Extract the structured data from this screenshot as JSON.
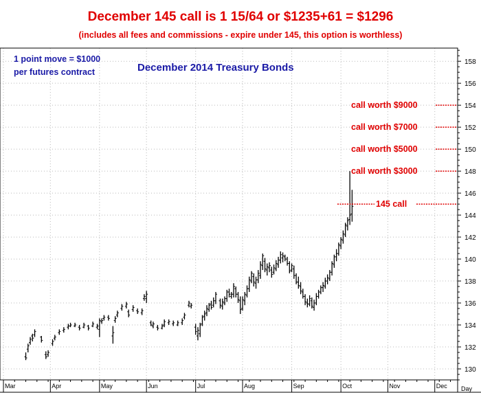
{
  "header": {
    "title": "December 145 call is 1 15/64 or $1235+61 = $1296",
    "subtitle": "(includes all fees and commissions - expire under 145, this option is worthless)"
  },
  "colors": {
    "red": "#e00000",
    "blue": "#1a1aa6",
    "bars": "#000000",
    "grid": "#b8b8b8"
  },
  "chart_data": {
    "type": "bar",
    "subtype": "ohlc-price-bars",
    "title": "December 2014 Treasury Bonds",
    "note": "1 point move = $1000 per futures contract",
    "xlabel": "Day",
    "ylim": [
      129,
      159.2
    ],
    "y_ticks": [
      130,
      132,
      134,
      136,
      138,
      140,
      142,
      144,
      146,
      148,
      150,
      152,
      154,
      156,
      158
    ],
    "y_tick_labels": [
      "130",
      "132",
      "134",
      "136",
      "138",
      "140",
      "142",
      "144",
      "146",
      "148",
      "150",
      "152",
      "154",
      "156",
      "158"
    ],
    "x_months": [
      "Mar",
      "Apr",
      "May",
      "Jun",
      "Jul",
      "Aug",
      "Sep",
      "Oct",
      "Nov",
      "Dec"
    ],
    "x_month_index": [
      0,
      21,
      43,
      64,
      86,
      107,
      129,
      151,
      172,
      193
    ],
    "grid": true,
    "annotations": [
      {
        "label": "call worth $9000",
        "y": 154
      },
      {
        "label": "call worth $7000",
        "y": 152
      },
      {
        "label": "call worth $5000",
        "y": 150
      },
      {
        "label": "call worth $3000",
        "y": 148
      },
      {
        "label": "145 call",
        "y": 145
      }
    ],
    "bars": [
      {
        "x": 10,
        "low": 130.8,
        "high": 131.5,
        "open": 131.1,
        "close": 131.0
      },
      {
        "x": 11,
        "low": 131.5,
        "high": 132.3,
        "open": 131.8,
        "close": 132.1
      },
      {
        "x": 12,
        "low": 132.2,
        "high": 132.9,
        "open": 132.4,
        "close": 132.7
      },
      {
        "x": 13,
        "low": 132.5,
        "high": 133.2,
        "open": 133.0,
        "close": 132.8
      },
      {
        "x": 14,
        "low": 132.9,
        "high": 133.6,
        "open": 133.1,
        "close": 133.4
      },
      {
        "x": 17,
        "low": 132.4,
        "high": 133.0,
        "open": 132.9,
        "close": 132.6
      },
      {
        "x": 19,
        "low": 130.9,
        "high": 131.6,
        "open": 131.3,
        "close": 131.1
      },
      {
        "x": 20,
        "low": 131.1,
        "high": 131.7,
        "open": 131.3,
        "close": 131.5
      },
      {
        "x": 22,
        "low": 132.1,
        "high": 132.7,
        "open": 132.3,
        "close": 132.5
      },
      {
        "x": 23,
        "low": 132.6,
        "high": 133.1,
        "open": 132.8,
        "close": 132.9
      },
      {
        "x": 25,
        "low": 133.1,
        "high": 133.6,
        "open": 133.3,
        "close": 133.4
      },
      {
        "x": 27,
        "low": 133.3,
        "high": 133.8,
        "open": 133.5,
        "close": 133.6
      },
      {
        "x": 29,
        "low": 133.6,
        "high": 134.1,
        "open": 133.8,
        "close": 133.9
      },
      {
        "x": 30,
        "low": 133.8,
        "high": 134.2,
        "open": 133.9,
        "close": 134.0
      },
      {
        "x": 32,
        "low": 133.8,
        "high": 134.2,
        "open": 133.9,
        "close": 134.0
      },
      {
        "x": 34,
        "low": 133.5,
        "high": 134.0,
        "open": 133.8,
        "close": 133.7
      },
      {
        "x": 36,
        "low": 133.7,
        "high": 134.2,
        "open": 133.8,
        "close": 134.0
      },
      {
        "x": 38,
        "low": 133.5,
        "high": 134.0,
        "open": 133.9,
        "close": 133.7
      },
      {
        "x": 40,
        "low": 133.8,
        "high": 134.3,
        "open": 133.9,
        "close": 134.1
      },
      {
        "x": 42,
        "low": 133.6,
        "high": 134.1,
        "open": 133.8,
        "close": 133.9
      },
      {
        "x": 43,
        "low": 132.9,
        "high": 134.6,
        "open": 133.6,
        "close": 134.4
      },
      {
        "x": 44,
        "low": 134.1,
        "high": 134.6,
        "open": 134.3,
        "close": 134.4
      },
      {
        "x": 45,
        "low": 134.4,
        "high": 134.9,
        "open": 134.6,
        "close": 134.7
      },
      {
        "x": 47,
        "low": 134.4,
        "high": 134.9,
        "open": 134.7,
        "close": 134.6
      },
      {
        "x": 49,
        "low": 132.3,
        "high": 133.9,
        "open": 133.0,
        "close": 133.3
      },
      {
        "x": 50,
        "low": 134.2,
        "high": 134.8,
        "open": 134.4,
        "close": 134.6
      },
      {
        "x": 51,
        "low": 134.7,
        "high": 135.3,
        "open": 134.9,
        "close": 135.1
      },
      {
        "x": 53,
        "low": 135.3,
        "high": 135.9,
        "open": 135.5,
        "close": 135.7
      },
      {
        "x": 55,
        "low": 135.5,
        "high": 136.1,
        "open": 135.7,
        "close": 135.9
      },
      {
        "x": 56,
        "low": 134.7,
        "high": 135.4,
        "open": 135.2,
        "close": 134.9
      },
      {
        "x": 58,
        "low": 135.2,
        "high": 135.8,
        "open": 135.4,
        "close": 135.6
      },
      {
        "x": 60,
        "low": 135.0,
        "high": 135.5,
        "open": 135.3,
        "close": 135.2
      },
      {
        "x": 62,
        "low": 134.9,
        "high": 135.5,
        "open": 135.1,
        "close": 135.3
      },
      {
        "x": 63,
        "low": 136.2,
        "high": 136.8,
        "open": 136.4,
        "close": 136.6
      },
      {
        "x": 64,
        "low": 136.0,
        "high": 137.1,
        "open": 136.4,
        "close": 136.8
      },
      {
        "x": 66,
        "low": 133.9,
        "high": 134.4,
        "open": 134.2,
        "close": 134.0
      },
      {
        "x": 67,
        "low": 133.7,
        "high": 134.3,
        "open": 133.9,
        "close": 134.1
      },
      {
        "x": 69,
        "low": 133.5,
        "high": 134.0,
        "open": 133.8,
        "close": 133.7
      },
      {
        "x": 71,
        "low": 133.6,
        "high": 134.1,
        "open": 133.7,
        "close": 133.9
      },
      {
        "x": 72,
        "low": 133.8,
        "high": 134.5,
        "open": 134.0,
        "close": 134.3
      },
      {
        "x": 74,
        "low": 134.0,
        "high": 134.5,
        "open": 134.2,
        "close": 134.3
      },
      {
        "x": 76,
        "low": 133.9,
        "high": 134.4,
        "open": 134.1,
        "close": 134.2
      },
      {
        "x": 78,
        "low": 133.9,
        "high": 134.4,
        "open": 134.0,
        "close": 134.2
      },
      {
        "x": 80,
        "low": 134.0,
        "high": 134.6,
        "open": 134.2,
        "close": 134.4
      },
      {
        "x": 81,
        "low": 134.5,
        "high": 135.1,
        "open": 134.7,
        "close": 134.9
      },
      {
        "x": 83,
        "low": 135.6,
        "high": 136.2,
        "open": 135.8,
        "close": 136.0
      },
      {
        "x": 84,
        "low": 135.5,
        "high": 136.0,
        "open": 135.7,
        "close": 135.8
      },
      {
        "x": 86,
        "low": 133.1,
        "high": 134.1,
        "open": 133.8,
        "close": 133.4
      },
      {
        "x": 87,
        "low": 132.6,
        "high": 133.8,
        "open": 133.0,
        "close": 133.5
      },
      {
        "x": 88,
        "low": 132.9,
        "high": 134.2,
        "open": 133.2,
        "close": 134.0
      },
      {
        "x": 89,
        "low": 133.9,
        "high": 134.9,
        "open": 134.1,
        "close": 134.7
      },
      {
        "x": 90,
        "low": 134.4,
        "high": 135.3,
        "open": 134.8,
        "close": 135.0
      },
      {
        "x": 91,
        "low": 134.8,
        "high": 135.8,
        "open": 135.1,
        "close": 135.5
      },
      {
        "x": 92,
        "low": 135.2,
        "high": 136.0,
        "open": 135.4,
        "close": 135.8
      },
      {
        "x": 93,
        "low": 135.4,
        "high": 136.2,
        "open": 135.9,
        "close": 135.6
      },
      {
        "x": 94,
        "low": 135.6,
        "high": 136.5,
        "open": 135.8,
        "close": 136.2
      },
      {
        "x": 95,
        "low": 135.9,
        "high": 137.0,
        "open": 136.2,
        "close": 136.8
      },
      {
        "x": 97,
        "low": 135.5,
        "high": 136.4,
        "open": 136.2,
        "close": 135.8
      },
      {
        "x": 98,
        "low": 135.4,
        "high": 136.4,
        "open": 135.7,
        "close": 136.1
      },
      {
        "x": 99,
        "low": 135.8,
        "high": 136.6,
        "open": 136.0,
        "close": 136.4
      },
      {
        "x": 100,
        "low": 136.1,
        "high": 137.2,
        "open": 136.4,
        "close": 137.0
      },
      {
        "x": 101,
        "low": 136.5,
        "high": 137.3,
        "open": 137.0,
        "close": 136.8
      },
      {
        "x": 102,
        "low": 136.4,
        "high": 137.0,
        "open": 136.6,
        "close": 136.8
      },
      {
        "x": 103,
        "low": 136.5,
        "high": 137.8,
        "open": 136.8,
        "close": 137.5
      },
      {
        "x": 104,
        "low": 136.5,
        "high": 137.5,
        "open": 137.3,
        "close": 136.8
      },
      {
        "x": 105,
        "low": 136.0,
        "high": 137.0,
        "open": 136.8,
        "close": 136.3
      },
      {
        "x": 106,
        "low": 135.0,
        "high": 136.6,
        "open": 136.2,
        "close": 135.4
      },
      {
        "x": 107,
        "low": 135.3,
        "high": 136.6,
        "open": 135.5,
        "close": 136.3
      },
      {
        "x": 108,
        "low": 135.8,
        "high": 137.0,
        "open": 136.2,
        "close": 136.8
      },
      {
        "x": 109,
        "low": 136.5,
        "high": 137.6,
        "open": 136.7,
        "close": 137.3
      },
      {
        "x": 110,
        "low": 137.0,
        "high": 138.4,
        "open": 137.3,
        "close": 138.1
      },
      {
        "x": 111,
        "low": 137.8,
        "high": 138.9,
        "open": 138.0,
        "close": 138.7
      },
      {
        "x": 112,
        "low": 137.5,
        "high": 138.7,
        "open": 138.4,
        "close": 137.9
      },
      {
        "x": 113,
        "low": 137.3,
        "high": 138.4,
        "open": 137.8,
        "close": 138.1
      },
      {
        "x": 114,
        "low": 137.8,
        "high": 139.0,
        "open": 138.1,
        "close": 138.7
      },
      {
        "x": 115,
        "low": 138.2,
        "high": 139.8,
        "open": 138.5,
        "close": 139.5
      },
      {
        "x": 116,
        "low": 139.0,
        "high": 140.5,
        "open": 139.4,
        "close": 140.3
      },
      {
        "x": 117,
        "low": 138.8,
        "high": 140.1,
        "open": 139.8,
        "close": 139.1
      },
      {
        "x": 118,
        "low": 138.5,
        "high": 139.6,
        "open": 139.0,
        "close": 139.3
      },
      {
        "x": 119,
        "low": 138.8,
        "high": 139.7,
        "open": 139.2,
        "close": 139.4
      },
      {
        "x": 120,
        "low": 138.3,
        "high": 139.3,
        "open": 139.0,
        "close": 138.6
      },
      {
        "x": 121,
        "low": 138.6,
        "high": 139.5,
        "open": 138.8,
        "close": 139.2
      },
      {
        "x": 122,
        "low": 138.9,
        "high": 139.9,
        "open": 139.1,
        "close": 139.6
      },
      {
        "x": 123,
        "low": 139.2,
        "high": 140.2,
        "open": 139.5,
        "close": 139.9
      },
      {
        "x": 124,
        "low": 139.6,
        "high": 140.7,
        "open": 139.9,
        "close": 140.4
      },
      {
        "x": 125,
        "low": 139.7,
        "high": 140.6,
        "open": 140.1,
        "close": 140.3
      },
      {
        "x": 126,
        "low": 139.8,
        "high": 140.4,
        "open": 140.2,
        "close": 140.0
      },
      {
        "x": 127,
        "low": 139.4,
        "high": 140.2,
        "open": 140.0,
        "close": 139.6
      },
      {
        "x": 128,
        "low": 138.7,
        "high": 139.8,
        "open": 139.6,
        "close": 138.9
      },
      {
        "x": 129,
        "low": 138.8,
        "high": 139.6,
        "open": 139.0,
        "close": 139.4
      },
      {
        "x": 130,
        "low": 138.2,
        "high": 139.4,
        "open": 139.1,
        "close": 138.5
      },
      {
        "x": 131,
        "low": 137.7,
        "high": 138.7,
        "open": 138.5,
        "close": 137.9
      },
      {
        "x": 132,
        "low": 137.3,
        "high": 138.4,
        "open": 137.9,
        "close": 137.6
      },
      {
        "x": 133,
        "low": 136.8,
        "high": 137.9,
        "open": 137.5,
        "close": 137.1
      },
      {
        "x": 134,
        "low": 136.4,
        "high": 137.3,
        "open": 137.0,
        "close": 136.6
      },
      {
        "x": 135,
        "low": 135.8,
        "high": 136.8,
        "open": 136.6,
        "close": 136.1
      },
      {
        "x": 136,
        "low": 135.6,
        "high": 136.4,
        "open": 136.0,
        "close": 135.9
      },
      {
        "x": 137,
        "low": 135.7,
        "high": 136.7,
        "open": 135.9,
        "close": 136.4
      },
      {
        "x": 138,
        "low": 135.5,
        "high": 136.5,
        "open": 136.2,
        "close": 135.7
      },
      {
        "x": 139,
        "low": 135.3,
        "high": 136.3,
        "open": 135.6,
        "close": 136.0
      },
      {
        "x": 140,
        "low": 135.8,
        "high": 136.9,
        "open": 136.0,
        "close": 136.6
      },
      {
        "x": 141,
        "low": 136.4,
        "high": 137.2,
        "open": 136.6,
        "close": 137.0
      },
      {
        "x": 142,
        "low": 136.8,
        "high": 137.6,
        "open": 137.0,
        "close": 137.4
      },
      {
        "x": 143,
        "low": 137.0,
        "high": 137.9,
        "open": 137.4,
        "close": 137.6
      },
      {
        "x": 144,
        "low": 137.3,
        "high": 138.3,
        "open": 137.5,
        "close": 138.0
      },
      {
        "x": 145,
        "low": 137.7,
        "high": 138.6,
        "open": 138.0,
        "close": 138.3
      },
      {
        "x": 146,
        "low": 138.0,
        "high": 139.0,
        "open": 138.2,
        "close": 138.8
      },
      {
        "x": 147,
        "low": 138.5,
        "high": 139.8,
        "open": 138.8,
        "close": 139.6
      },
      {
        "x": 148,
        "low": 139.2,
        "high": 140.4,
        "open": 139.5,
        "close": 140.2
      },
      {
        "x": 149,
        "low": 139.8,
        "high": 140.9,
        "open": 140.2,
        "close": 140.5
      },
      {
        "x": 150,
        "low": 140.3,
        "high": 141.5,
        "open": 140.5,
        "close": 141.3
      },
      {
        "x": 151,
        "low": 140.9,
        "high": 142.0,
        "open": 141.2,
        "close": 141.8
      },
      {
        "x": 152,
        "low": 141.4,
        "high": 142.6,
        "open": 141.7,
        "close": 142.3
      },
      {
        "x": 153,
        "low": 142.0,
        "high": 143.3,
        "open": 142.2,
        "close": 143.1
      },
      {
        "x": 154,
        "low": 142.6,
        "high": 143.8,
        "open": 143.0,
        "close": 143.5
      },
      {
        "x": 155,
        "low": 143.1,
        "high": 148.0,
        "open": 143.6,
        "close": 144.0
      },
      {
        "x": 156,
        "low": 143.4,
        "high": 146.3,
        "open": 144.1,
        "close": 144.8
      }
    ]
  }
}
